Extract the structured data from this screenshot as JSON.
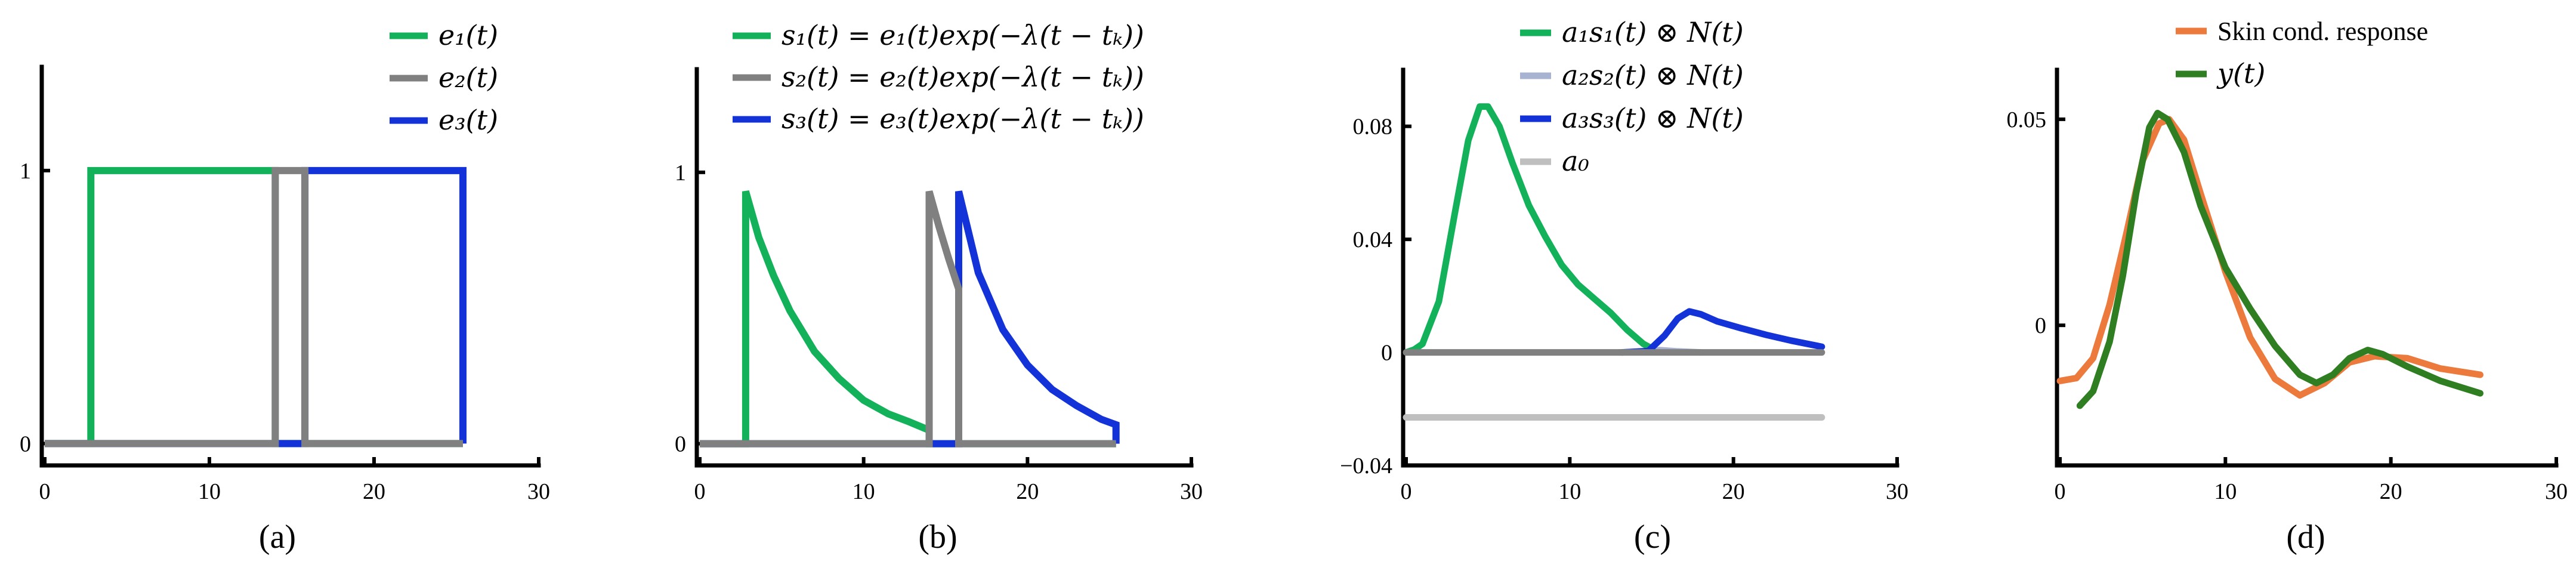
{
  "colors": {
    "green": "#13B25A",
    "gray": "#808080",
    "blue": "#1333D9",
    "lightblue": "#A7B3D1",
    "lightgray": "#BFBFBF",
    "orange": "#EC7A3C",
    "darkgreen": "#2F7E22"
  },
  "chart_data": [
    {
      "type": "line",
      "panel_label": "(a)",
      "xlim": [
        0,
        30
      ],
      "ylim": [
        -0.08,
        1.38
      ],
      "x_ticks": [
        "0",
        "10",
        "20",
        "30"
      ],
      "y_ticks": [
        "0",
        "1"
      ],
      "legend": [
        "e₁(t)",
        "e₂(t)",
        "e₃(t)"
      ],
      "series": [
        {
          "name": "e₁(t)",
          "color": "green",
          "points": [
            [
              0,
              0
            ],
            [
              2.8,
              0
            ],
            [
              2.8,
              1
            ],
            [
              14,
              1
            ],
            [
              14,
              0
            ],
            [
              25.4,
              0
            ]
          ]
        },
        {
          "name": "e₃(t)",
          "color": "blue",
          "points": [
            [
              0,
              0
            ],
            [
              15.8,
              0
            ],
            [
              15.8,
              1
            ],
            [
              25.4,
              1
            ],
            [
              25.4,
              0
            ]
          ]
        },
        {
          "name": "e₂(t)",
          "color": "gray",
          "points": [
            [
              0,
              0
            ],
            [
              14,
              0
            ],
            [
              14,
              1
            ],
            [
              15.8,
              1
            ],
            [
              15.8,
              0
            ],
            [
              25.4,
              0
            ]
          ]
        }
      ]
    },
    {
      "type": "line",
      "panel_label": "(b)",
      "xlim": [
        0,
        30
      ],
      "ylim": [
        -0.08,
        1.38
      ],
      "x_ticks": [
        "0",
        "10",
        "20",
        "30"
      ],
      "y_ticks": [
        "0",
        "1"
      ],
      "legend": [
        "s₁(t)  =  e₁(t)exp(−λ(t − tₖ))",
        "s₂(t)  =  e₂(t)exp(−λ(t − tₖ))",
        "s₃(t)  =  e₃(t)exp(−λ(t − tₖ))"
      ],
      "series": [
        {
          "name": "s₁(t)",
          "color": "green",
          "points": [
            [
              0,
              0
            ],
            [
              2.8,
              0
            ],
            [
              2.8,
              0.93
            ],
            [
              3.6,
              0.76
            ],
            [
              4.5,
              0.62
            ],
            [
              5.5,
              0.49
            ],
            [
              7,
              0.34
            ],
            [
              8.5,
              0.24
            ],
            [
              10,
              0.16
            ],
            [
              11.5,
              0.11
            ],
            [
              12.8,
              0.08
            ],
            [
              14,
              0.05
            ],
            [
              14,
              0
            ],
            [
              25.4,
              0
            ]
          ]
        },
        {
          "name": "s₃(t)",
          "color": "blue",
          "points": [
            [
              0,
              0
            ],
            [
              15.8,
              0
            ],
            [
              15.8,
              0.93
            ],
            [
              17,
              0.63
            ],
            [
              18.5,
              0.42
            ],
            [
              20,
              0.29
            ],
            [
              21.5,
              0.2
            ],
            [
              23,
              0.14
            ],
            [
              24.5,
              0.09
            ],
            [
              25.4,
              0.07
            ],
            [
              25.4,
              0
            ]
          ]
        },
        {
          "name": "s₂(t)",
          "color": "gray",
          "points": [
            [
              0,
              0
            ],
            [
              14,
              0
            ],
            [
              14,
              0.93
            ],
            [
              14.6,
              0.8
            ],
            [
              15.2,
              0.68
            ],
            [
              15.8,
              0.57
            ],
            [
              15.8,
              0
            ],
            [
              25.4,
              0
            ]
          ]
        }
      ]
    },
    {
      "type": "line",
      "panel_label": "(c)",
      "xlim": [
        0,
        30
      ],
      "ylim": [
        -0.04,
        0.1
      ],
      "x_ticks": [
        "0",
        "10",
        "20",
        "30"
      ],
      "y_ticks": [
        "−0.04",
        "0",
        "0.04",
        "0.08"
      ],
      "legend": [
        "a₁s₁(t) ⊗ N(t)",
        "a₂s₂(t) ⊗ N(t)",
        "a₃s₃(t) ⊗ N(t)",
        "a₀"
      ],
      "series": [
        {
          "name": "a₁s₁(t) ⊗ N(t)",
          "color": "green",
          "points": [
            [
              0,
              0
            ],
            [
              0.5,
              0.001
            ],
            [
              1,
              0.003
            ],
            [
              2,
              0.018
            ],
            [
              3,
              0.05
            ],
            [
              3.8,
              0.075
            ],
            [
              4.5,
              0.087
            ],
            [
              5,
              0.087
            ],
            [
              5.7,
              0.08
            ],
            [
              6.5,
              0.067
            ],
            [
              7.5,
              0.052
            ],
            [
              8.5,
              0.041
            ],
            [
              9.5,
              0.031
            ],
            [
              10.5,
              0.024
            ],
            [
              11.5,
              0.019
            ],
            [
              12.5,
              0.014
            ],
            [
              13.5,
              0.008
            ],
            [
              14.5,
              0.003
            ],
            [
              15.3,
              0.0005
            ],
            [
              16,
              0
            ]
          ]
        },
        {
          "name": "a₂s₂(t) ⊗ N(t)",
          "color": "lightblue",
          "points": [
            [
              13,
              0
            ],
            [
              14.5,
              0.0003
            ],
            [
              15.5,
              0.0008
            ],
            [
              16.5,
              0.0004
            ],
            [
              18,
              0
            ]
          ]
        },
        {
          "name": "a₃s₃(t) ⊗ N(t)",
          "color": "blue",
          "points": [
            [
              13.2,
              0
            ],
            [
              14.8,
              0.0005
            ],
            [
              15.8,
              0.006
            ],
            [
              16.6,
              0.012
            ],
            [
              17.3,
              0.0145
            ],
            [
              18,
              0.0135
            ],
            [
              19,
              0.011
            ],
            [
              20.5,
              0.0085
            ],
            [
              22,
              0.0062
            ],
            [
              23.5,
              0.0042
            ],
            [
              25.4,
              0.002
            ]
          ]
        },
        {
          "name": "a₀",
          "color": "lightgray",
          "points": [
            [
              0,
              -0.023
            ],
            [
              25.4,
              -0.023
            ]
          ]
        },
        {
          "name": "",
          "color": "gray",
          "points": [
            [
              0,
              0
            ],
            [
              25.4,
              0
            ]
          ]
        }
      ]
    },
    {
      "type": "line",
      "panel_label": "(d)",
      "xlim": [
        0,
        30
      ],
      "ylim": [
        -0.034,
        0.062
      ],
      "x_ticks": [
        "0",
        "10",
        "20",
        "30"
      ],
      "y_ticks": [
        "0",
        "0.05"
      ],
      "legend": [
        "Skin cond. response",
        "y(t)"
      ],
      "series": [
        {
          "name": "Skin cond. response",
          "color": "orange",
          "points": [
            [
              0,
              -0.0135
            ],
            [
              1,
              -0.0128
            ],
            [
              2,
              -0.008
            ],
            [
              3,
              0.005
            ],
            [
              4,
              0.022
            ],
            [
              5,
              0.04
            ],
            [
              6,
              0.049
            ],
            [
              6.6,
              0.05
            ],
            [
              7.5,
              0.045
            ],
            [
              8.5,
              0.032
            ],
            [
              10,
              0.013
            ],
            [
              11.5,
              -0.003
            ],
            [
              13,
              -0.013
            ],
            [
              14.5,
              -0.017
            ],
            [
              16,
              -0.014
            ],
            [
              17.5,
              -0.009
            ],
            [
              19,
              -0.0075
            ],
            [
              21,
              -0.008
            ],
            [
              23,
              -0.0105
            ],
            [
              25.4,
              -0.012
            ]
          ]
        },
        {
          "name": "y(t)",
          "color": "darkgreen",
          "points": [
            [
              1.2,
              -0.0195
            ],
            [
              2,
              -0.016
            ],
            [
              3,
              -0.004
            ],
            [
              3.8,
              0.012
            ],
            [
              4.6,
              0.032
            ],
            [
              5.4,
              0.048
            ],
            [
              5.9,
              0.0515
            ],
            [
              6.5,
              0.05
            ],
            [
              7.5,
              0.042
            ],
            [
              8.5,
              0.029
            ],
            [
              10,
              0.014
            ],
            [
              11.5,
              0.004
            ],
            [
              13,
              -0.005
            ],
            [
              14.5,
              -0.012
            ],
            [
              15.5,
              -0.014
            ],
            [
              16.5,
              -0.012
            ],
            [
              17.5,
              -0.008
            ],
            [
              18.6,
              -0.006
            ],
            [
              19.5,
              -0.007
            ],
            [
              21,
              -0.01
            ],
            [
              23,
              -0.0135
            ],
            [
              25.4,
              -0.0165
            ]
          ]
        }
      ]
    }
  ]
}
